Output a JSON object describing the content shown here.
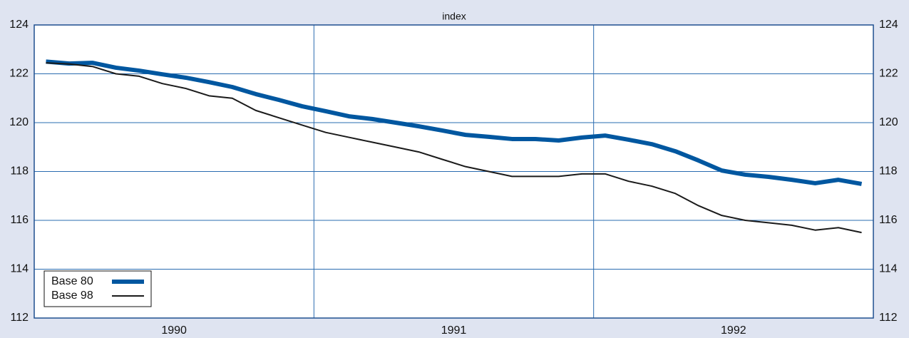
{
  "chart_data": {
    "type": "line",
    "title": "index",
    "x": [
      1990.042,
      1990.125,
      1990.208,
      1990.292,
      1990.375,
      1990.458,
      1990.542,
      1990.625,
      1990.708,
      1990.792,
      1990.875,
      1990.958,
      1991.042,
      1991.125,
      1991.208,
      1991.292,
      1991.375,
      1991.458,
      1991.542,
      1991.625,
      1991.708,
      1991.792,
      1991.875,
      1991.958,
      1992.042,
      1992.125,
      1992.208,
      1992.292,
      1992.375,
      1992.458,
      1992.542,
      1992.625,
      1992.708,
      1992.792,
      1992.875,
      1992.958
    ],
    "series": [
      {
        "name": "Base 80",
        "color": "#0057a0",
        "width": 6,
        "values": [
          122.5,
          122.42,
          122.45,
          122.25,
          122.13,
          121.98,
          121.84,
          121.66,
          121.46,
          121.17,
          120.93,
          120.67,
          120.47,
          120.26,
          120.15,
          120.0,
          119.85,
          119.68,
          119.5,
          119.42,
          119.33,
          119.33,
          119.27,
          119.39,
          119.47,
          119.3,
          119.12,
          118.83,
          118.45,
          118.04,
          117.87,
          117.78,
          117.66,
          117.52,
          117.66,
          117.49
        ]
      },
      {
        "name": "Base 98",
        "color": "#1a1a1a",
        "width": 2,
        "values": [
          122.45,
          122.4,
          122.3,
          122.0,
          121.9,
          121.6,
          121.4,
          121.1,
          121.0,
          120.5,
          120.2,
          119.9,
          119.6,
          119.4,
          119.2,
          119.0,
          118.8,
          118.5,
          118.2,
          118.0,
          117.8,
          117.8,
          117.8,
          117.9,
          117.9,
          117.6,
          117.4,
          117.1,
          116.6,
          116.2,
          116.0,
          115.9,
          115.8,
          115.6,
          115.7,
          115.5
        ]
      }
    ],
    "xlim": [
      1990,
      1993
    ],
    "xticks": [
      {
        "value": 1990,
        "label": "1990"
      },
      {
        "value": 1991,
        "label": "1991"
      },
      {
        "value": 1992,
        "label": "1992"
      }
    ],
    "ylim": [
      112,
      124
    ],
    "yticks": [
      112,
      114,
      116,
      118,
      120,
      122,
      124
    ],
    "grid": true,
    "grid_color": "#2a6cb0",
    "legend": "lower-left"
  }
}
